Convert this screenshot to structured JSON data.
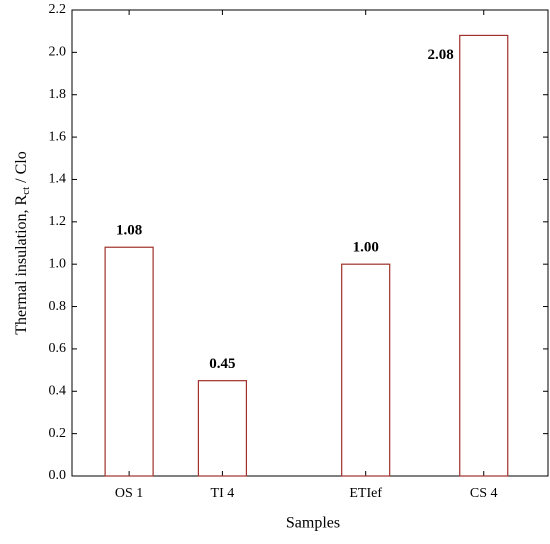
{
  "chart_data": {
    "type": "bar",
    "y_label": "Thermal insulation, R",
    "y_label_sub": "ct",
    "y_label_tail": " / Clo",
    "x_label": "Samples",
    "categories": [
      "OS 1",
      "TI 4",
      "ETIef",
      "CS 4"
    ],
    "values": [
      1.08,
      0.45,
      1.0,
      2.08
    ],
    "value_labels": [
      "1.08",
      "0.45",
      "1.00",
      "2.08"
    ],
    "color": "#a0302a",
    "ylim": [
      0,
      2.2
    ],
    "yticks": [
      {
        "value": 0,
        "label": "0.0"
      },
      0.2,
      0.4,
      0.6,
      0.8,
      {
        "value": 1,
        "label": "1.0"
      },
      1.2,
      1.4,
      1.6,
      1.8,
      {
        "value": 2,
        "label": "2.0"
      },
      2.2
    ],
    "grid": false
  }
}
